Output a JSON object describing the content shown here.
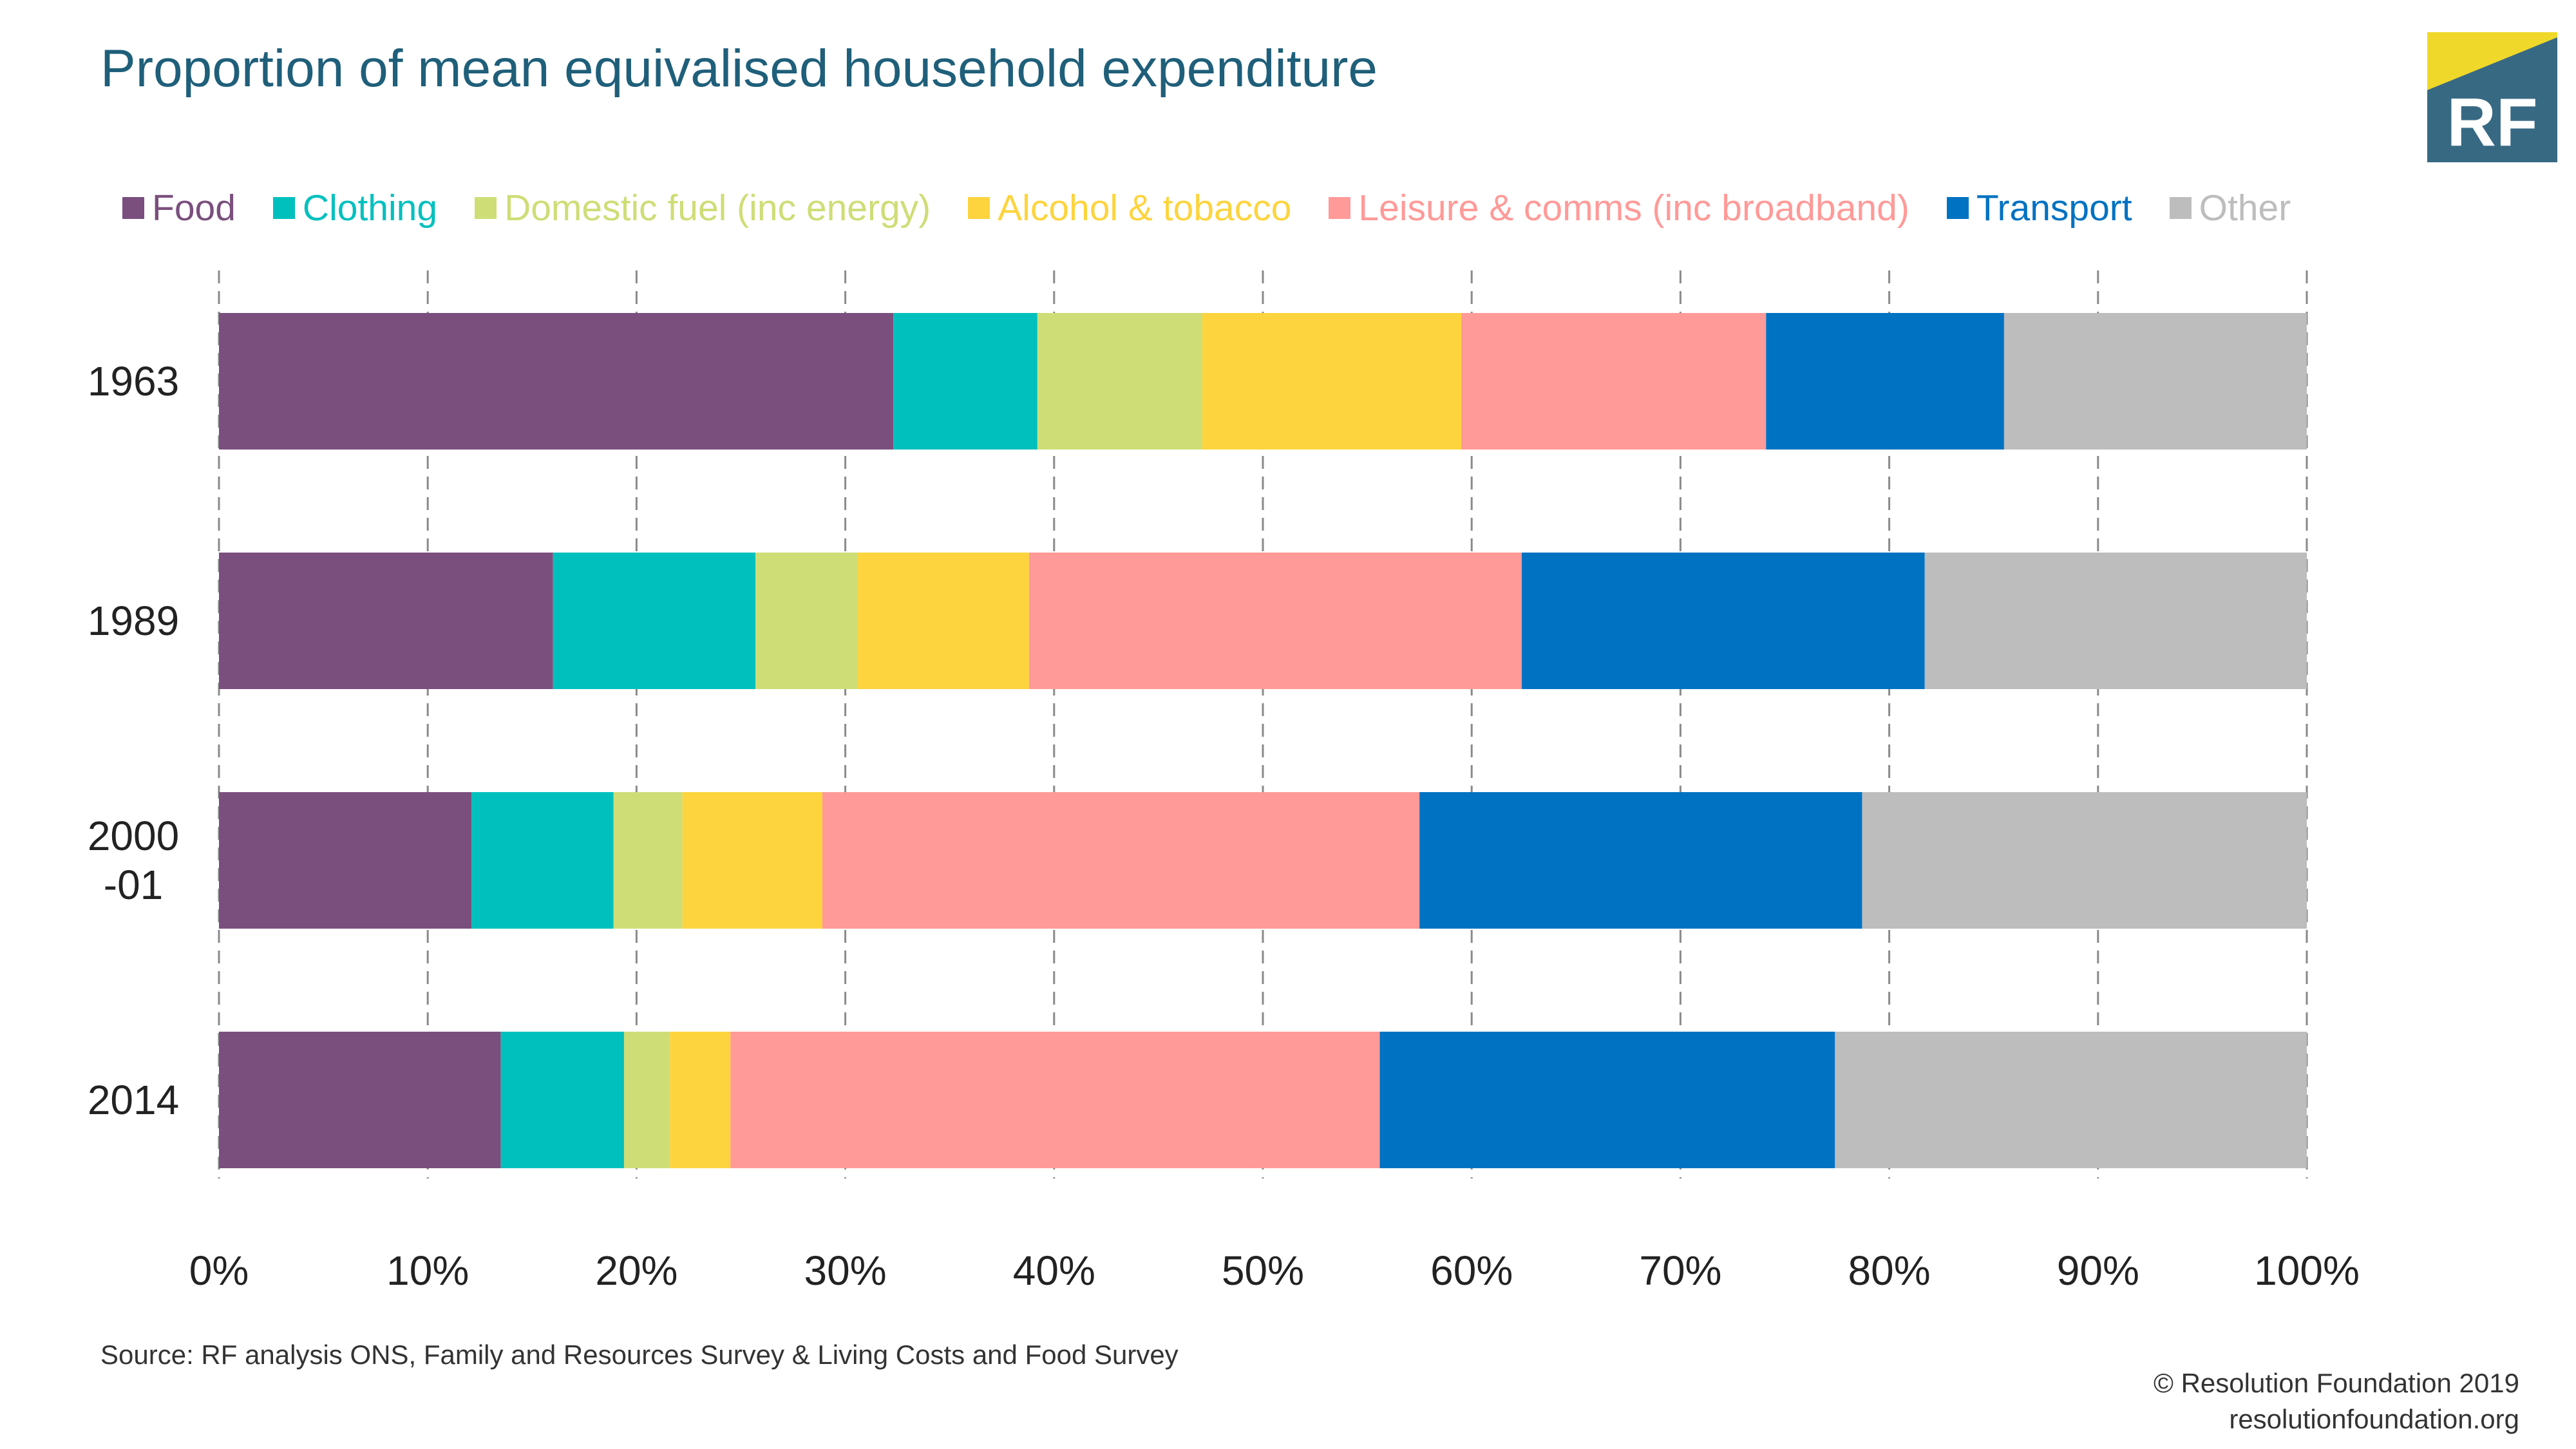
{
  "title": "Proportion of mean equivalised household expenditure",
  "logo_text": "RF",
  "colors": {
    "title": "#1f5f7a",
    "logo_bg": "#386983",
    "logo_accent": "#f0d82a",
    "grid": "#8a8a8a"
  },
  "chart_data": {
    "type": "bar",
    "orientation": "horizontal",
    "stacked": true,
    "title": "Proportion of mean equivalised household expenditure",
    "categories": [
      "1963",
      "1989",
      "2000-01",
      "2014"
    ],
    "category_lines": [
      [
        "1963"
      ],
      [
        "1989"
      ],
      [
        "2000",
        "-01"
      ],
      [
        "2014"
      ]
    ],
    "series": [
      {
        "name": "Food",
        "color": "#7a4f7d",
        "values": [
          32.3,
          16.0,
          12.1,
          13.5
        ]
      },
      {
        "name": "Clothing",
        "color": "#00c0be",
        "values": [
          6.9,
          9.7,
          6.8,
          5.9
        ]
      },
      {
        "name": "Domestic fuel (inc energy)",
        "color": "#cfdd76",
        "values": [
          7.9,
          4.9,
          3.3,
          2.2
        ]
      },
      {
        "name": "Alcohol & tobacco",
        "color": "#fdd43e",
        "values": [
          12.4,
          8.2,
          6.7,
          2.9
        ]
      },
      {
        "name": "Leisure & comms (inc broadband)",
        "color": "#ff9a98",
        "values": [
          14.6,
          23.6,
          28.6,
          31.1
        ]
      },
      {
        "name": "Transport",
        "color": "#0072c2",
        "values": [
          11.4,
          19.3,
          21.2,
          21.8
        ]
      },
      {
        "name": "Other",
        "color": "#bdbdbd",
        "values": [
          14.5,
          18.3,
          21.3,
          22.6
        ]
      }
    ],
    "xlim": [
      0,
      100
    ],
    "xticks": [
      0,
      10,
      20,
      30,
      40,
      50,
      60,
      70,
      80,
      90,
      100
    ],
    "xtick_labels": [
      "0%",
      "10%",
      "20%",
      "30%",
      "40%",
      "50%",
      "60%",
      "70%",
      "80%",
      "90%",
      "100%"
    ],
    "grid": true,
    "legend_position": "top"
  },
  "source": "Source: RF analysis ONS, Family and Resources Survey & Living Costs and Food Survey",
  "footer": {
    "copyright": "© Resolution Foundation 2019",
    "website": "resolutionfoundation.org"
  }
}
